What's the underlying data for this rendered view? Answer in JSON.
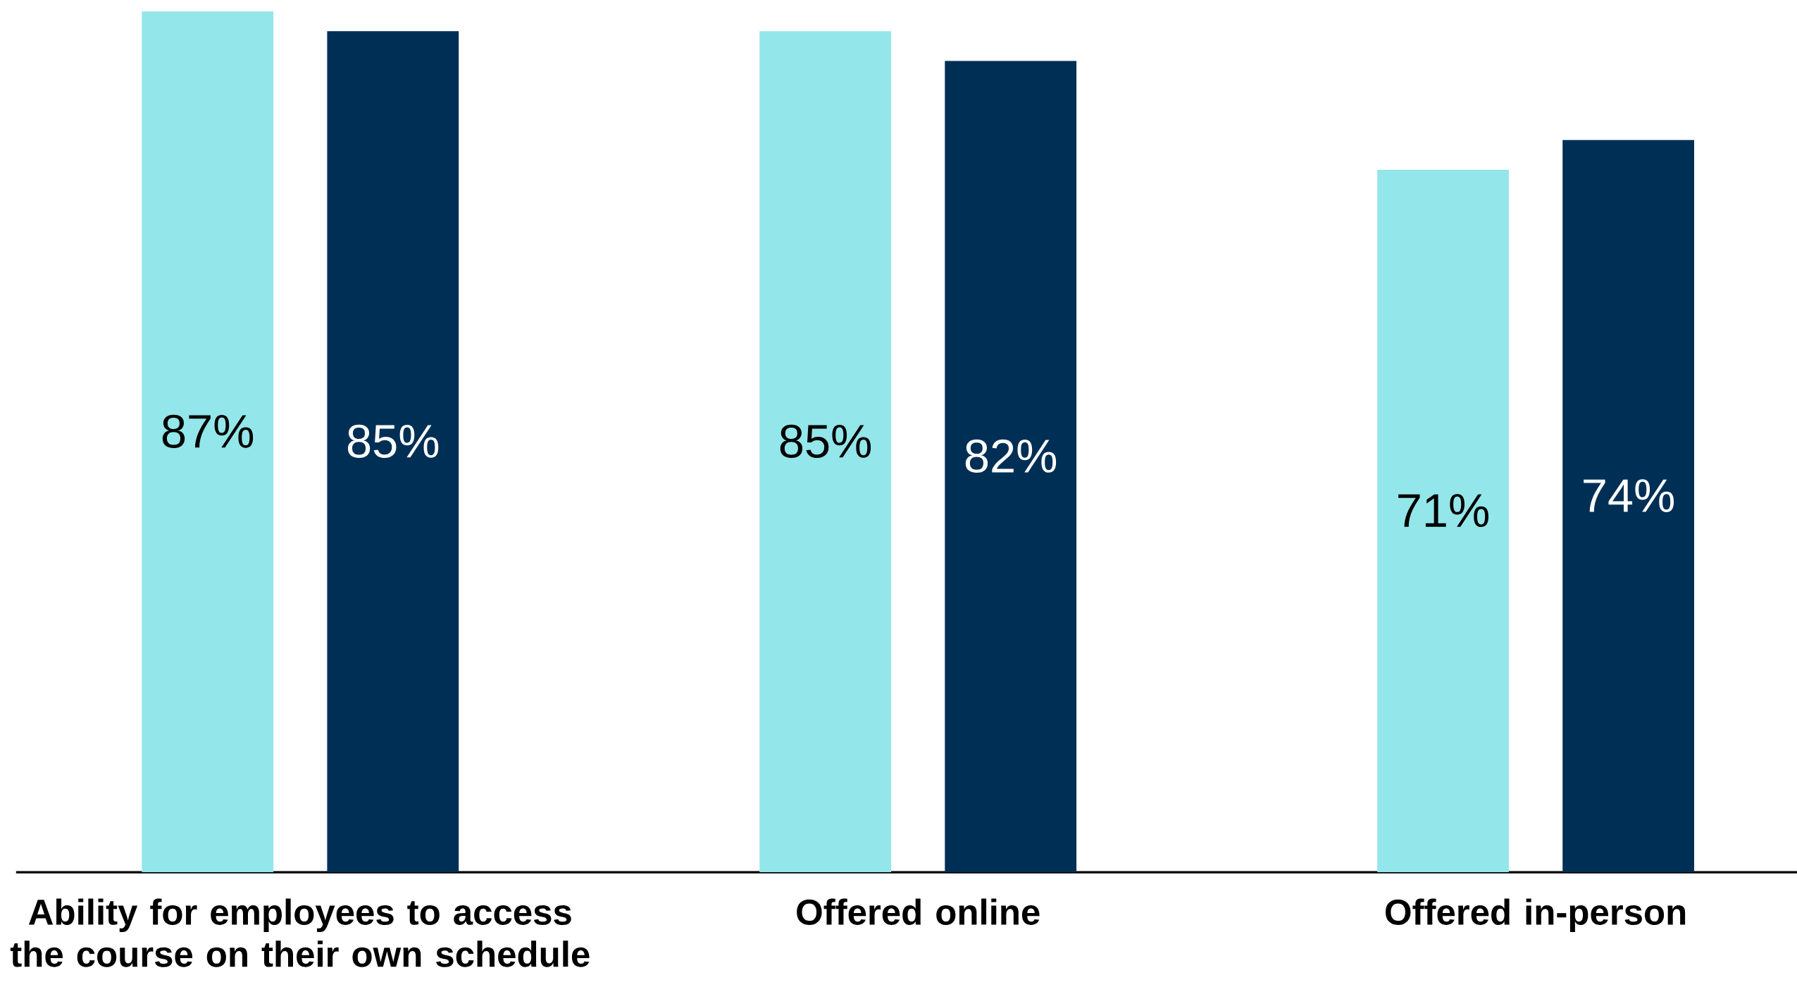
{
  "chart_data": {
    "type": "bar",
    "categories": [
      "Ability for employees to access the course on their own schedule",
      "Offered online",
      "Offered in-person"
    ],
    "series": [
      {
        "color": "#93e6ea",
        "values": [
          87,
          85,
          71
        ],
        "value_labels": [
          "87%",
          "85%",
          "71%"
        ]
      },
      {
        "color": "#002f56",
        "values": [
          85,
          82,
          74
        ],
        "value_labels": [
          "85%",
          "82%",
          "74%"
        ]
      }
    ]
  }
}
